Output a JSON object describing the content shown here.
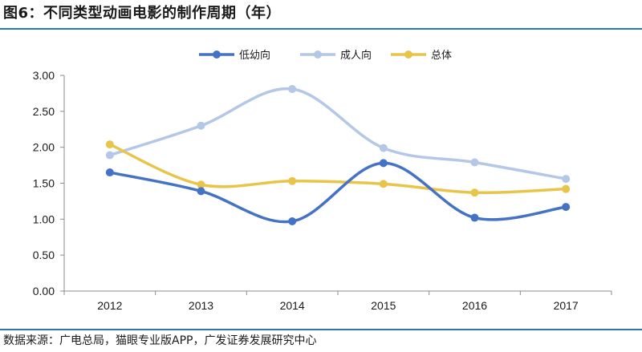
{
  "title": "图6：不同类型动画电影的制作周期（年）",
  "source": "数据来源：广电总局，猫眼专业版APP，广发证券发展研究中心",
  "chart_data": {
    "type": "line",
    "title": "",
    "xlabel": "",
    "ylabel": "",
    "categories": [
      "2012",
      "2013",
      "2014",
      "2015",
      "2016",
      "2017"
    ],
    "ylim": [
      0,
      3
    ],
    "yticks": [
      "0.00",
      "0.50",
      "1.00",
      "1.50",
      "2.00",
      "2.50",
      "3.00"
    ],
    "grid": false,
    "legend_position": "top",
    "series": [
      {
        "name": "低幼向",
        "color": "#4472c4",
        "values": [
          1.65,
          1.39,
          0.97,
          1.78,
          1.02,
          1.17
        ]
      },
      {
        "name": "成人向",
        "color": "#b4c7e7",
        "values": [
          1.89,
          2.3,
          2.81,
          1.99,
          1.79,
          1.56
        ]
      },
      {
        "name": "总体",
        "color": "#e8c54a",
        "values": [
          2.04,
          1.48,
          1.53,
          1.49,
          1.37,
          1.42
        ]
      }
    ]
  }
}
